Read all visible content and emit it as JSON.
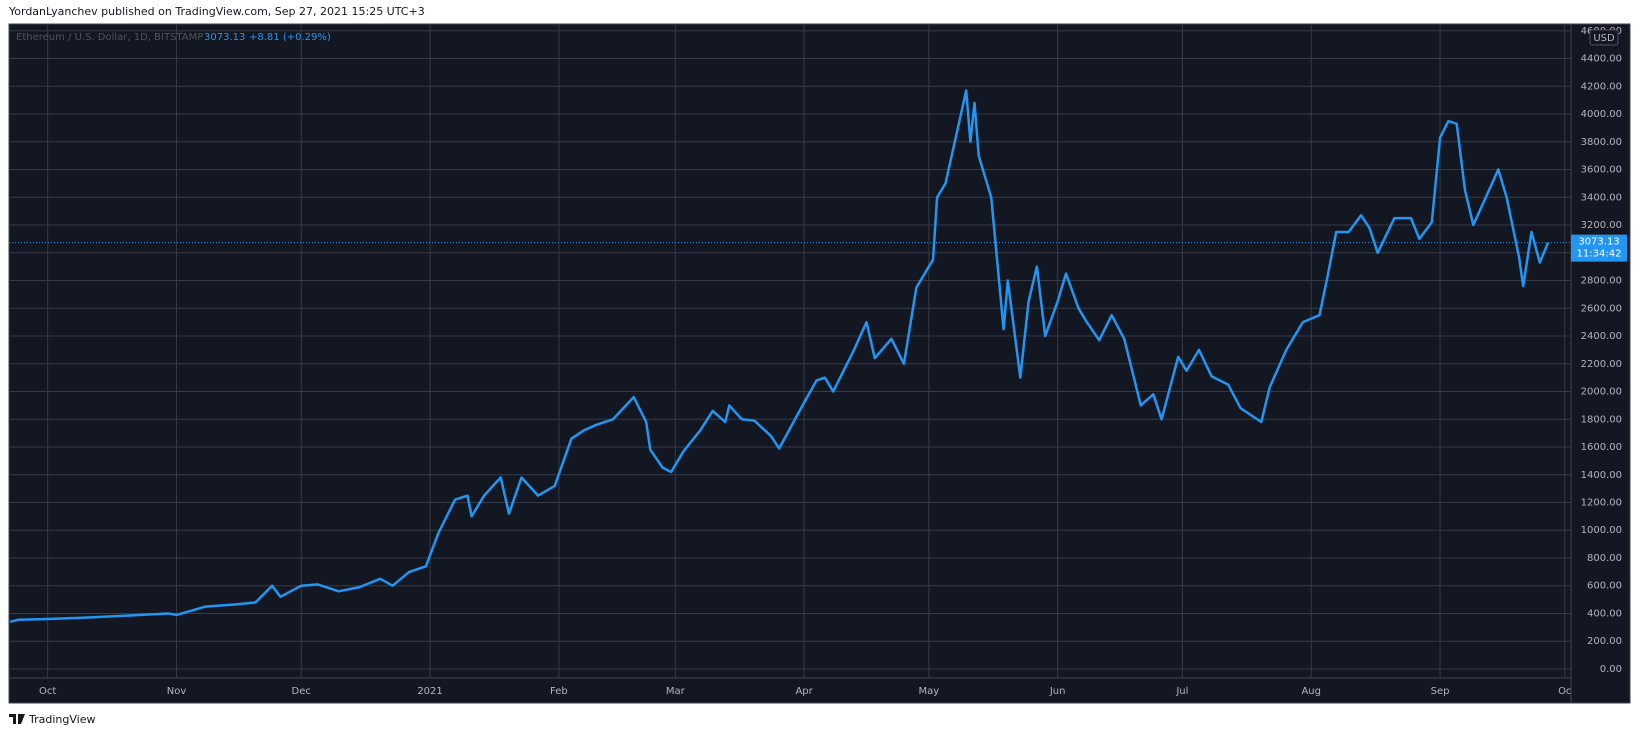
{
  "header": "YordanLyanchev published on TradingView.com, Sep 27, 2021 15:25 UTC+3",
  "footer": "TradingView",
  "chart_data": {
    "type": "line",
    "change": "+8.81 (+0.29%)",
    "currency": "USD",
    "last_price": 3073.13,
    "last_time": "11:34:42",
    "grid": true,
    "background": "#131722",
    "xlim": [
      -9.3,
      366.5
    ],
    "ylim": [
      -65,
      4649
    ],
    "xticks": [
      {
        "value": 0,
        "label": "Oct"
      },
      {
        "value": 31,
        "label": "Nov"
      },
      {
        "value": 61,
        "label": "Dec"
      },
      {
        "value": 92,
        "label": "2021"
      },
      {
        "value": 123,
        "label": "Feb"
      },
      {
        "value": 151,
        "label": "Mar"
      },
      {
        "value": 182,
        "label": "Apr"
      },
      {
        "value": 212,
        "label": "May"
      },
      {
        "value": 243,
        "label": "Jun"
      },
      {
        "value": 273,
        "label": "Jul"
      },
      {
        "value": 304,
        "label": "Aug"
      },
      {
        "value": 335,
        "label": "Sep"
      },
      {
        "value": 365,
        "label": "Oc"
      }
    ],
    "yticks": [
      {
        "value": 0,
        "label": "0.00"
      },
      {
        "value": 200,
        "label": "200.00"
      },
      {
        "value": 400,
        "label": "400.00"
      },
      {
        "value": 600,
        "label": "600.00"
      },
      {
        "value": 800,
        "label": "800.00"
      },
      {
        "value": 1000,
        "label": "1000.00"
      },
      {
        "value": 1200,
        "label": "1200.00"
      },
      {
        "value": 1400,
        "label": "1400.00"
      },
      {
        "value": 1600,
        "label": "1600.00"
      },
      {
        "value": 1800,
        "label": "1800.00"
      },
      {
        "value": 2000,
        "label": "2000.00"
      },
      {
        "value": 2200,
        "label": "2200.00"
      },
      {
        "value": 2400,
        "label": "2400.00"
      },
      {
        "value": 2600,
        "label": "2600.00"
      },
      {
        "value": 2800,
        "label": "2800.00"
      },
      {
        "value": 3000,
        "label": "3000.00"
      },
      {
        "value": 3200,
        "label": "3200.00"
      },
      {
        "value": 3400,
        "label": "3400.00"
      },
      {
        "value": 3600,
        "label": "3600.00"
      },
      {
        "value": 3800,
        "label": "3800.00"
      },
      {
        "value": 4000,
        "label": "4000.00"
      },
      {
        "value": 4200,
        "label": "4200.00"
      },
      {
        "value": 4400,
        "label": "4400.00"
      },
      {
        "value": 4600,
        "label": "4600.00"
      }
    ],
    "x": [
      -9,
      -7,
      0,
      9,
      19,
      29,
      31,
      38,
      45,
      50,
      54,
      56,
      61,
      65,
      70,
      75,
      80,
      83,
      87,
      91,
      94,
      98,
      101,
      102,
      105,
      109,
      111,
      114,
      118,
      122,
      126,
      129,
      132,
      136,
      141,
      144,
      145,
      148,
      150,
      153,
      157,
      160,
      163,
      164,
      167,
      170,
      174,
      176,
      178,
      182,
      185,
      187,
      189,
      194,
      197,
      199,
      203,
      206,
      209,
      213,
      214,
      216,
      219,
      221,
      222,
      223,
      224,
      227,
      230,
      231,
      234,
      236,
      238,
      240,
      243,
      245,
      248,
      250,
      253,
      256,
      259,
      263,
      266,
      268,
      272,
      274,
      277,
      280,
      284,
      287,
      292,
      294,
      298,
      302,
      306,
      308,
      310,
      313,
      316,
      318,
      320,
      324,
      328,
      330,
      333,
      335,
      337,
      339,
      341,
      343,
      346,
      349,
      351,
      354,
      355,
      357,
      359,
      361
    ],
    "series": [
      {
        "name": "Ethereum / U.S. Dollar, 1D, BITSTAMP",
        "color": "#2196f3",
        "values": [
          340,
          355,
          360,
          370,
          385,
          400,
          390,
          450,
          465,
          480,
          600,
          520,
          600,
          610,
          560,
          590,
          650,
          600,
          700,
          740,
          980,
          1220,
          1250,
          1100,
          1250,
          1380,
          1120,
          1380,
          1250,
          1320,
          1660,
          1720,
          1760,
          1800,
          1960,
          1780,
          1580,
          1450,
          1420,
          1570,
          1720,
          1860,
          1780,
          1900,
          1800,
          1790,
          1680,
          1590,
          1700,
          1920,
          2080,
          2100,
          2000,
          2300,
          2500,
          2240,
          2380,
          2200,
          2750,
          2950,
          3400,
          3500,
          3900,
          4170,
          3800,
          4080,
          3700,
          3400,
          2450,
          2800,
          2100,
          2650,
          2900,
          2400,
          2650,
          2850,
          2600,
          2500,
          2370,
          2550,
          2380,
          1900,
          1980,
          1800,
          2250,
          2150,
          2300,
          2110,
          2050,
          1880,
          1780,
          2030,
          2300,
          2500,
          2550,
          2840,
          3150,
          3150,
          3270,
          3180,
          3000,
          3250,
          3250,
          3100,
          3220,
          3830,
          3950,
          3930,
          3450,
          3200,
          3400,
          3600,
          3400,
          2970,
          2760,
          3150,
          2930,
          3073.13
        ]
      }
    ]
  }
}
